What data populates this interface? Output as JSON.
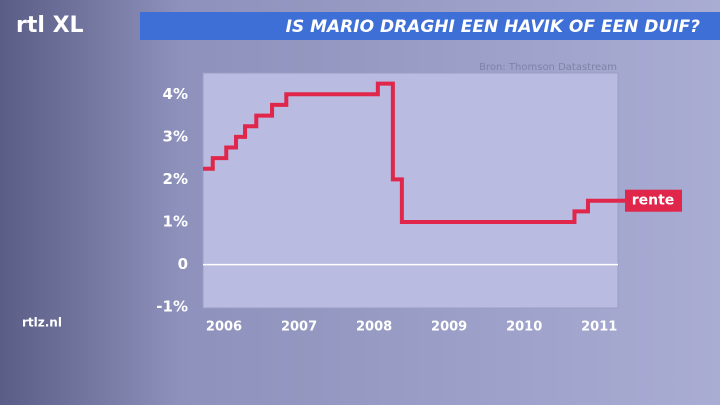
{
  "chart_data": {
    "type": "line",
    "title": "IS MARIO DRAGHI EEN HAVIK OF EEN DUIF?",
    "source": "Bron: Thomson Datastream",
    "steps": "post",
    "x": [
      2005.72,
      2005.85,
      2006.03,
      2006.16,
      2006.28,
      2006.43,
      2006.64,
      2006.83,
      2008.05,
      2008.25,
      2008.37,
      2010.67,
      2010.85,
      2011.25
    ],
    "series": [
      {
        "name": "rente",
        "color": "#e0264a",
        "values": [
          2.25,
          2.5,
          2.75,
          3.0,
          3.25,
          3.5,
          3.75,
          4.0,
          4.25,
          2.0,
          1.0,
          1.25,
          1.5,
          1.5
        ]
      }
    ],
    "xlim": [
      2005.72,
      2011.25
    ],
    "xticks": [
      2006,
      2007,
      2008,
      2009,
      2010,
      2011
    ],
    "ylim": [
      -1.02,
      4.5
    ],
    "yticks": [
      {
        "value": -1,
        "label": "-1%"
      },
      0,
      {
        "value": 1,
        "label": "1%"
      },
      {
        "value": 2,
        "label": "2%"
      },
      {
        "value": 3,
        "label": "3%"
      },
      {
        "value": 4,
        "label": "4%"
      }
    ]
  },
  "branding": {
    "logo": "rtl XL",
    "website": "rtlz.nl"
  }
}
